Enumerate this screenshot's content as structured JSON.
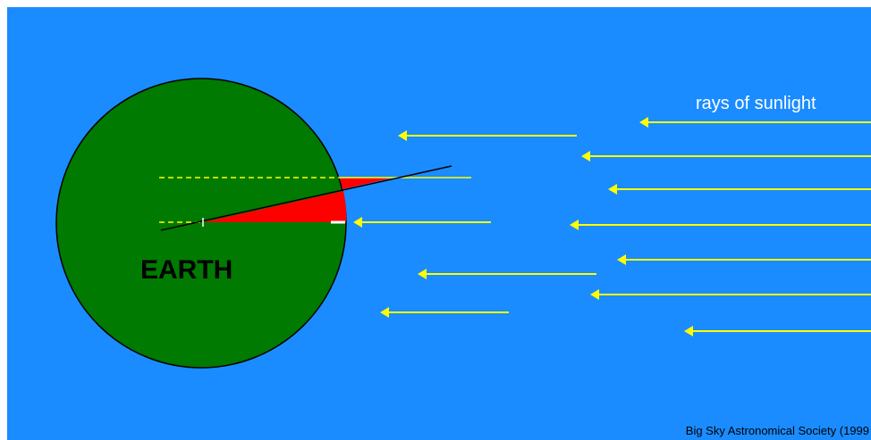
{
  "title": "rays of sunlight",
  "earth_label": "EARTH",
  "credit": "Big Sky Astronomical Society (1999"
}
